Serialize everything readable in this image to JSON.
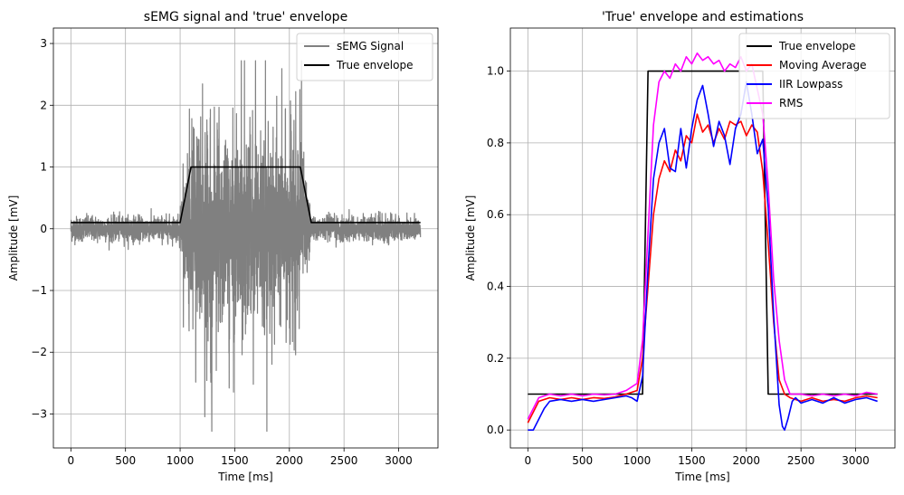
{
  "chart_data": [
    {
      "type": "line",
      "title": "sEMG signal and 'true' envelope",
      "xlabel": "Time [ms]",
      "ylabel": "Amplitude [mV]",
      "xlim": [
        -160,
        3360
      ],
      "ylim": [
        -3.55,
        3.25
      ],
      "xticks": [
        0,
        500,
        1000,
        1500,
        2000,
        2500,
        3000
      ],
      "xtick_labels": [
        "0",
        "500",
        "1000",
        "1500",
        "2000",
        "2500",
        "3000"
      ],
      "yticks": [
        -3,
        -2,
        -1,
        0,
        1,
        2,
        3
      ],
      "ytick_labels": [
        "−3",
        "−2",
        "−1",
        "0",
        "1",
        "2",
        "3"
      ],
      "grid": true,
      "legend": "top-right",
      "series": [
        {
          "name": "sEMG Signal",
          "color": "#808080",
          "kind": "noise",
          "note_free_render": true,
          "envelope_x": [
            0,
            990,
            1000,
            1100,
            2100,
            2200,
            3200
          ],
          "envelope_amp": [
            0.3,
            0.3,
            0.6,
            2.6,
            2.3,
            0.3,
            0.3
          ],
          "extremes": {
            "max": 2.72,
            "min": -3.28
          }
        },
        {
          "name": "True envelope",
          "color": "#000000",
          "x": [
            0,
            1000,
            1100,
            2100,
            2200,
            3200
          ],
          "y": [
            0.1,
            0.1,
            1.0,
            1.0,
            0.1,
            0.1
          ]
        }
      ]
    },
    {
      "type": "line",
      "title": "'True' envelope and estimations",
      "xlabel": "Time [ms]",
      "ylabel": "Amplitude [mV]",
      "xlim": [
        -160,
        3360
      ],
      "ylim": [
        -0.05,
        1.12
      ],
      "xticks": [
        0,
        500,
        1000,
        1500,
        2000,
        2500,
        3000
      ],
      "xtick_labels": [
        "0",
        "500",
        "1000",
        "1500",
        "2000",
        "2500",
        "3000"
      ],
      "yticks": [
        0.0,
        0.2,
        0.4,
        0.6,
        0.8,
        1.0
      ],
      "ytick_labels": [
        "0.0",
        "0.2",
        "0.4",
        "0.6",
        "0.8",
        "1.0"
      ],
      "grid": true,
      "legend": "top-right",
      "series": [
        {
          "name": "True envelope",
          "color": "#000000",
          "x": [
            0,
            1050,
            1100,
            2150,
            2200,
            3200
          ],
          "y": [
            0.1,
            0.1,
            1.0,
            1.0,
            0.1,
            0.1
          ]
        },
        {
          "name": "Moving Average",
          "color": "#ff0000",
          "x": [
            0,
            50,
            100,
            200,
            300,
            400,
            500,
            600,
            700,
            800,
            900,
            1000,
            1050,
            1100,
            1150,
            1200,
            1250,
            1300,
            1350,
            1400,
            1450,
            1500,
            1550,
            1600,
            1650,
            1700,
            1750,
            1800,
            1850,
            1900,
            1950,
            2000,
            2050,
            2100,
            2150,
            2200,
            2250,
            2300,
            2350,
            2400,
            2450,
            2500,
            2600,
            2700,
            2800,
            2900,
            3000,
            3100,
            3200
          ],
          "y": [
            0.02,
            0.05,
            0.08,
            0.09,
            0.085,
            0.09,
            0.085,
            0.09,
            0.088,
            0.092,
            0.1,
            0.11,
            0.2,
            0.4,
            0.6,
            0.7,
            0.75,
            0.72,
            0.78,
            0.75,
            0.82,
            0.8,
            0.88,
            0.83,
            0.85,
            0.8,
            0.84,
            0.81,
            0.86,
            0.85,
            0.86,
            0.82,
            0.85,
            0.83,
            0.72,
            0.52,
            0.3,
            0.14,
            0.1,
            0.09,
            0.085,
            0.08,
            0.09,
            0.08,
            0.085,
            0.08,
            0.09,
            0.095,
            0.09
          ]
        },
        {
          "name": "IIR Lowpass",
          "color": "#0000ff",
          "x": [
            0,
            50,
            100,
            150,
            200,
            300,
            400,
            500,
            600,
            700,
            800,
            900,
            950,
            1000,
            1050,
            1100,
            1150,
            1200,
            1250,
            1300,
            1350,
            1400,
            1450,
            1500,
            1550,
            1600,
            1650,
            1700,
            1750,
            1800,
            1850,
            1900,
            1950,
            2000,
            2050,
            2100,
            2150,
            2200,
            2250,
            2300,
            2330,
            2350,
            2380,
            2420,
            2450,
            2500,
            2600,
            2700,
            2800,
            2900,
            3000,
            3100,
            3200
          ],
          "y": [
            0.0,
            0.0,
            0.03,
            0.06,
            0.08,
            0.085,
            0.08,
            0.085,
            0.08,
            0.085,
            0.09,
            0.095,
            0.09,
            0.08,
            0.15,
            0.45,
            0.7,
            0.8,
            0.84,
            0.73,
            0.72,
            0.84,
            0.73,
            0.84,
            0.92,
            0.96,
            0.88,
            0.79,
            0.86,
            0.82,
            0.74,
            0.84,
            0.88,
            0.97,
            0.88,
            0.77,
            0.81,
            0.62,
            0.32,
            0.07,
            0.01,
            0.0,
            0.03,
            0.08,
            0.09,
            0.075,
            0.085,
            0.075,
            0.09,
            0.075,
            0.085,
            0.09,
            0.08
          ]
        },
        {
          "name": "RMS",
          "color": "#ff00ff",
          "x": [
            0,
            50,
            100,
            200,
            300,
            400,
            500,
            600,
            700,
            800,
            900,
            1000,
            1050,
            1100,
            1150,
            1200,
            1250,
            1300,
            1350,
            1400,
            1450,
            1500,
            1550,
            1600,
            1650,
            1700,
            1750,
            1800,
            1850,
            1900,
            1950,
            2000,
            2050,
            2100,
            2150,
            2200,
            2250,
            2300,
            2350,
            2400,
            2500,
            2600,
            2700,
            2800,
            2900,
            3000,
            3100,
            3200
          ],
          "y": [
            0.03,
            0.06,
            0.09,
            0.1,
            0.095,
            0.1,
            0.095,
            0.1,
            0.098,
            0.1,
            0.11,
            0.13,
            0.25,
            0.55,
            0.85,
            0.97,
            1.0,
            0.98,
            1.02,
            1.0,
            1.04,
            1.02,
            1.05,
            1.03,
            1.04,
            1.02,
            1.03,
            1.0,
            1.02,
            1.01,
            1.04,
            1.0,
            1.02,
            0.95,
            0.88,
            0.68,
            0.42,
            0.25,
            0.14,
            0.1,
            0.1,
            0.095,
            0.1,
            0.095,
            0.1,
            0.095,
            0.105,
            0.1
          ]
        }
      ]
    }
  ]
}
